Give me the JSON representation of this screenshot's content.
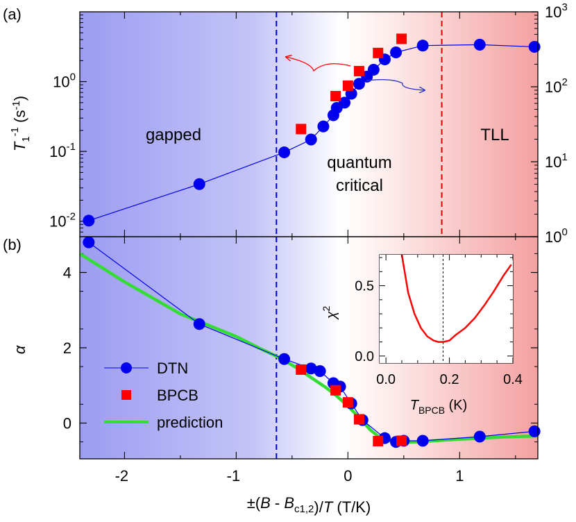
{
  "chart_data": [
    {
      "panel_label": "(a)",
      "type": "line",
      "x_scale": "linear",
      "y_scale": "log",
      "xlim": [
        -2.4,
        1.7
      ],
      "ylim_left": [
        0.006,
        10
      ],
      "ylim_right": [
        1,
        1000
      ],
      "ylabel": "T_1^-1 (s^-1)",
      "yticks_left": [
        "10^-2",
        "10^-1",
        "10^0"
      ],
      "yticks_right": [
        "10^0",
        "10^1",
        "10^2",
        "10^3"
      ],
      "region_labels": [
        "gapped",
        "quantum critical",
        "TLL"
      ],
      "boundaries": [
        {
          "x": -0.64,
          "color": "#0000cc",
          "style": "dashed"
        },
        {
          "x": 0.84,
          "color": "#dd0000",
          "style": "dashed"
        }
      ],
      "background": {
        "left_color": "#9c9cf2",
        "center_color": "#ffffff",
        "right_color": "#f4a0a0"
      },
      "series": [
        {
          "name": "DTN",
          "marker": "circle",
          "color": "#0000ee",
          "line": true,
          "axis": "left",
          "points": [
            [
              -2.32,
              0.0102
            ],
            [
              -1.33,
              0.034
            ],
            [
              -0.57,
              0.097
            ],
            [
              -0.33,
              0.148
            ],
            [
              -0.22,
              0.228
            ],
            [
              -0.13,
              0.33
            ],
            [
              -0.1,
              0.42
            ],
            [
              -0.03,
              0.5
            ],
            [
              0.03,
              0.67
            ],
            [
              0.1,
              0.93
            ],
            [
              0.17,
              1.18
            ],
            [
              0.23,
              1.48
            ],
            [
              0.33,
              2.08
            ],
            [
              0.43,
              2.62
            ],
            [
              0.67,
              3.28
            ],
            [
              1.18,
              3.38
            ],
            [
              1.67,
              3.15
            ]
          ]
        },
        {
          "name": "BPCB",
          "marker": "square",
          "color": "#ff0000",
          "line": false,
          "axis": "right",
          "points": [
            [
              -0.42,
              27.3
            ],
            [
              -0.11,
              75.0
            ],
            [
              0.0,
              103.5
            ],
            [
              0.1,
              161.8
            ],
            [
              0.27,
              282.2
            ],
            [
              0.48,
              436.0
            ]
          ]
        }
      ],
      "arrows": [
        {
          "color": "#ff0000",
          "direction": "left",
          "points_to": "left axis"
        },
        {
          "color": "#3333cc",
          "direction": "right",
          "points_to": "right axis"
        }
      ]
    },
    {
      "panel_label": "(b)",
      "type": "line",
      "x_scale": "linear",
      "y_scale": "linear",
      "xlim": [
        -2.4,
        1.7
      ],
      "ylim": [
        -0.95,
        4.95
      ],
      "xlabel": "±(B - B_c1,2)/T (T/K)",
      "ylabel": "α",
      "xticks": [
        -2,
        -1,
        0,
        1
      ],
      "yticks": [
        0,
        2,
        4
      ],
      "legend": {
        "placement": "bottom-left",
        "entries": [
          "DTN",
          "BPCB",
          "prediction"
        ]
      },
      "series": [
        {
          "name": "DTN",
          "marker": "circle",
          "color": "#0000ee",
          "line": true,
          "points": [
            [
              -2.32,
              4.8
            ],
            [
              -1.33,
              2.63
            ],
            [
              -0.57,
              1.7
            ],
            [
              -0.33,
              1.45
            ],
            [
              -0.25,
              1.38
            ],
            [
              -0.13,
              1.06
            ],
            [
              -0.07,
              0.97
            ],
            [
              0.03,
              0.52
            ],
            [
              0.13,
              0.08
            ],
            [
              0.33,
              -0.4
            ],
            [
              0.43,
              -0.5
            ],
            [
              0.5,
              -0.47
            ],
            [
              0.67,
              -0.47
            ],
            [
              1.18,
              -0.36
            ],
            [
              1.67,
              -0.22
            ]
          ]
        },
        {
          "name": "BPCB",
          "marker": "square",
          "color": "#ff0000",
          "line": false,
          "points": [
            [
              -0.42,
              1.42
            ],
            [
              -0.11,
              0.87
            ],
            [
              0.0,
              0.55
            ],
            [
              0.1,
              0.1
            ],
            [
              0.27,
              -0.48
            ],
            [
              0.48,
              -0.47
            ]
          ]
        },
        {
          "name": "prediction",
          "marker": "none",
          "color": "#33dd33",
          "line": true,
          "points": [
            [
              -2.4,
              4.5
            ],
            [
              -2.0,
              3.75
            ],
            [
              -1.5,
              2.9
            ],
            [
              -1.0,
              2.3
            ],
            [
              -0.8,
              2.0
            ],
            [
              -0.6,
              1.72
            ],
            [
              -0.45,
              1.45
            ],
            [
              -0.3,
              1.15
            ],
            [
              -0.2,
              0.95
            ],
            [
              -0.1,
              0.72
            ],
            [
              0.0,
              0.45
            ],
            [
              0.1,
              0.15
            ],
            [
              0.2,
              -0.18
            ],
            [
              0.3,
              -0.42
            ],
            [
              0.45,
              -0.52
            ],
            [
              0.6,
              -0.5
            ],
            [
              1.0,
              -0.43
            ],
            [
              1.4,
              -0.37
            ],
            [
              1.7,
              -0.34
            ]
          ]
        }
      ],
      "inset": {
        "type": "line",
        "xlabel": "T_BPCB (K)",
        "ylabel": "χ^2",
        "xlim": [
          -0.02,
          0.4
        ],
        "ylim": [
          -0.05,
          0.72
        ],
        "xticks": [
          0.0,
          0.2,
          0.4
        ],
        "yticks": [
          0.0,
          0.5
        ],
        "marker_line": {
          "x": 0.18,
          "style": "dashed",
          "color": "#000000"
        },
        "series": [
          {
            "color": "#ff0000",
            "points": [
              [
                0.05,
                0.72
              ],
              [
                0.07,
                0.45
              ],
              [
                0.09,
                0.3
              ],
              [
                0.11,
                0.2
              ],
              [
                0.13,
                0.14
              ],
              [
                0.15,
                0.11
              ],
              [
                0.165,
                0.1
              ],
              [
                0.18,
                0.1
              ],
              [
                0.2,
                0.11
              ],
              [
                0.22,
                0.15
              ],
              [
                0.25,
                0.2
              ],
              [
                0.28,
                0.27
              ],
              [
                0.31,
                0.36
              ],
              [
                0.34,
                0.46
              ],
              [
                0.37,
                0.57
              ],
              [
                0.395,
                0.65
              ]
            ]
          }
        ]
      }
    }
  ]
}
